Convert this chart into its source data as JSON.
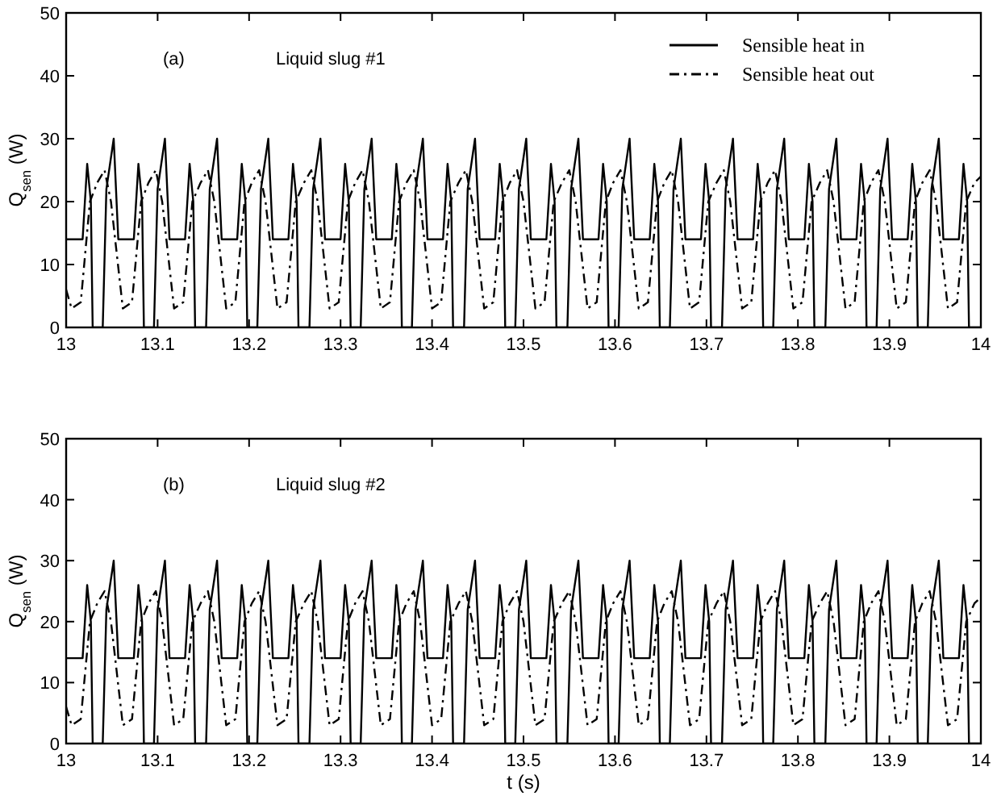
{
  "chart_data": [
    {
      "type": "line",
      "ylabel": "Q$_{sen}$ (W)",
      "annotations": [
        "(a)",
        "Liquid slug #1"
      ],
      "xlim": [
        13,
        14
      ],
      "ylim": [
        0,
        50
      ],
      "xticks": [
        13,
        13.1,
        13.2,
        13.3,
        13.4,
        13.5,
        13.6,
        13.7,
        13.8,
        13.9,
        14
      ],
      "yticks": [
        0,
        10,
        20,
        30,
        40,
        50
      ],
      "grid": false,
      "legend": "top right",
      "series": [
        {
          "name": "Sensible heat in",
          "color": "#000000",
          "line_style": "solid",
          "x": [
            13.0,
            13.018,
            13.023,
            13.027,
            13.029,
            13.04,
            13.044,
            13.052,
            13.057,
            13.074,
            13.079,
            13.083,
            13.085,
            13.096,
            13.1,
            13.108,
            13.113,
            13.13,
            13.135,
            13.139,
            13.141,
            13.153,
            13.157,
            13.165,
            13.17,
            13.187,
            13.192,
            13.196,
            13.198,
            13.209,
            13.213,
            13.221,
            13.226,
            13.243,
            13.248,
            13.252,
            13.254,
            13.266,
            13.27,
            13.278,
            13.283,
            13.3,
            13.305,
            13.309,
            13.311,
            13.322,
            13.326,
            13.334,
            13.339,
            13.356,
            13.361,
            13.365,
            13.367,
            13.378,
            13.382,
            13.39,
            13.395,
            13.412,
            13.417,
            13.421,
            13.423,
            13.435,
            13.439,
            13.447,
            13.452,
            13.469,
            13.474,
            13.478,
            13.48,
            13.491,
            13.495,
            13.503,
            13.508,
            13.525,
            13.53,
            13.534,
            13.536,
            13.548,
            13.552,
            13.56,
            13.565,
            13.582,
            13.587,
            13.591,
            13.593,
            13.604,
            13.608,
            13.616,
            13.621,
            13.638,
            13.643,
            13.647,
            13.649,
            13.66,
            13.664,
            13.672,
            13.677,
            13.694,
            13.699,
            13.703,
            13.705,
            13.717,
            13.721,
            13.729,
            13.734,
            13.751,
            13.756,
            13.76,
            13.762,
            13.773,
            13.777,
            13.785,
            13.79,
            13.807,
            13.812,
            13.816,
            13.818,
            13.83,
            13.834,
            13.842,
            13.847,
            13.864,
            13.869,
            13.873,
            13.875,
            13.886,
            13.89,
            13.898,
            13.903,
            13.92,
            13.925,
            13.929,
            13.931,
            13.942,
            13.946,
            13.954,
            13.959,
            13.976,
            13.981,
            13.985,
            13.987,
            14.0
          ],
          "values": [
            14,
            14,
            26,
            20,
            0,
            0,
            22,
            30,
            14,
            14,
            26,
            20,
            0,
            0,
            22,
            30,
            14,
            14,
            26,
            20,
            0,
            0,
            22,
            30,
            14,
            14,
            26,
            20,
            0,
            0,
            22,
            30,
            14,
            14,
            26,
            20,
            0,
            0,
            22,
            30,
            14,
            14,
            26,
            20,
            0,
            0,
            22,
            30,
            14,
            14,
            26,
            20,
            0,
            0,
            22,
            30,
            14,
            14,
            26,
            20,
            0,
            0,
            22,
            30,
            14,
            14,
            26,
            20,
            0,
            0,
            22,
            30,
            14,
            14,
            26,
            20,
            0,
            0,
            22,
            30,
            14,
            14,
            26,
            20,
            0,
            0,
            22,
            30,
            14,
            14,
            26,
            20,
            0,
            0,
            22,
            30,
            14,
            14,
            26,
            20,
            0,
            0,
            22,
            30,
            14,
            14,
            26,
            20,
            0,
            0,
            22,
            30,
            14,
            14,
            26,
            20,
            0,
            0,
            22,
            30,
            14,
            14,
            26,
            20,
            0,
            0,
            22,
            30,
            14,
            14,
            26,
            20,
            0,
            0,
            22,
            30,
            14,
            14,
            26,
            20,
            0,
            0
          ]
        },
        {
          "name": "Sensible heat out",
          "color": "#000000",
          "line_style": "dashed",
          "x": [
            13.0,
            13.006,
            13.016,
            13.026,
            13.034,
            13.042,
            13.049,
            13.062,
            13.072,
            13.082,
            13.09,
            13.098,
            13.105,
            13.118,
            13.128,
            13.138,
            13.147,
            13.155,
            13.162,
            13.175,
            13.185,
            13.195,
            13.203,
            13.211,
            13.218,
            13.231,
            13.241,
            13.251,
            13.26,
            13.268,
            13.275,
            13.288,
            13.298,
            13.308,
            13.316,
            13.324,
            13.331,
            13.344,
            13.354,
            13.364,
            13.372,
            13.38,
            13.387,
            13.4,
            13.41,
            13.42,
            13.429,
            13.437,
            13.444,
            13.457,
            13.467,
            13.477,
            13.485,
            13.493,
            13.5,
            13.513,
            13.523,
            13.533,
            13.542,
            13.55,
            13.557,
            13.57,
            13.58,
            13.59,
            13.598,
            13.606,
            13.613,
            13.626,
            13.636,
            13.646,
            13.654,
            13.662,
            13.669,
            13.682,
            13.692,
            13.702,
            13.711,
            13.719,
            13.726,
            13.739,
            13.749,
            13.759,
            13.767,
            13.775,
            13.782,
            13.795,
            13.805,
            13.815,
            13.824,
            13.832,
            13.839,
            13.852,
            13.862,
            13.872,
            13.88,
            13.888,
            13.895,
            13.908,
            13.918,
            13.928,
            13.936,
            13.944,
            13.951,
            13.964,
            13.974,
            13.984,
            13.993,
            14.0
          ],
          "values": [
            6,
            3,
            4,
            20,
            23,
            25,
            20,
            3,
            4,
            20,
            23,
            25,
            20,
            3,
            4,
            20,
            23,
            25,
            20,
            3,
            4,
            20,
            23,
            25,
            20,
            3,
            4,
            20,
            23,
            25,
            20,
            3,
            4,
            20,
            23,
            25,
            20,
            3,
            4,
            20,
            23,
            25,
            20,
            3,
            4,
            20,
            23,
            25,
            20,
            3,
            4,
            20,
            23,
            25,
            20,
            3,
            4,
            20,
            23,
            25,
            20,
            3,
            4,
            20,
            23,
            25,
            20,
            3,
            4,
            20,
            23,
            25,
            20,
            3,
            4,
            20,
            23,
            25,
            20,
            3,
            4,
            20,
            23,
            25,
            20,
            3,
            4,
            20,
            23,
            25,
            20,
            3,
            4,
            20,
            23,
            25,
            20,
            3,
            4,
            20,
            23,
            25,
            20,
            3,
            4,
            20,
            23,
            24
          ]
        }
      ]
    },
    {
      "type": "line",
      "xlabel": "t (s)",
      "ylabel": "Q$_{sen}$ (W)",
      "annotations": [
        "(b)",
        "Liquid slug #2"
      ],
      "xlim": [
        13,
        14
      ],
      "ylim": [
        0,
        50
      ],
      "xticks": [
        13,
        13.1,
        13.2,
        13.3,
        13.4,
        13.5,
        13.6,
        13.7,
        13.8,
        13.9,
        14
      ],
      "yticks": [
        0,
        10,
        20,
        30,
        40,
        50
      ],
      "grid": false,
      "series": [
        {
          "color": "#000000",
          "line_style": "solid",
          "x": [
            13.0,
            13.018,
            13.023,
            13.027,
            13.029,
            13.04,
            13.044,
            13.052,
            13.057,
            13.074,
            13.079,
            13.083,
            13.085,
            13.096,
            13.1,
            13.108,
            13.113,
            13.13,
            13.135,
            13.139,
            13.141,
            13.153,
            13.157,
            13.165,
            13.17,
            13.187,
            13.192,
            13.196,
            13.198,
            13.209,
            13.213,
            13.221,
            13.226,
            13.243,
            13.248,
            13.252,
            13.254,
            13.266,
            13.27,
            13.278,
            13.283,
            13.3,
            13.305,
            13.309,
            13.311,
            13.322,
            13.326,
            13.334,
            13.339,
            13.356,
            13.361,
            13.365,
            13.367,
            13.378,
            13.382,
            13.39,
            13.395,
            13.412,
            13.417,
            13.421,
            13.423,
            13.435,
            13.439,
            13.447,
            13.452,
            13.469,
            13.474,
            13.478,
            13.48,
            13.491,
            13.495,
            13.503,
            13.508,
            13.525,
            13.53,
            13.534,
            13.536,
            13.548,
            13.552,
            13.56,
            13.565,
            13.582,
            13.587,
            13.591,
            13.593,
            13.604,
            13.608,
            13.616,
            13.621,
            13.638,
            13.643,
            13.647,
            13.649,
            13.66,
            13.664,
            13.672,
            13.677,
            13.694,
            13.699,
            13.703,
            13.705,
            13.717,
            13.721,
            13.729,
            13.734,
            13.751,
            13.756,
            13.76,
            13.762,
            13.773,
            13.777,
            13.785,
            13.79,
            13.807,
            13.812,
            13.816,
            13.818,
            13.83,
            13.834,
            13.842,
            13.847,
            13.864,
            13.869,
            13.873,
            13.875,
            13.886,
            13.89,
            13.898,
            13.903,
            13.92,
            13.925,
            13.929,
            13.931,
            13.942,
            13.946,
            13.954,
            13.959,
            13.976,
            13.981,
            13.985,
            13.987,
            14.0
          ],
          "values": [
            14,
            14,
            26,
            20,
            0,
            0,
            22,
            30,
            14,
            14,
            26,
            20,
            0,
            0,
            22,
            30,
            14,
            14,
            26,
            20,
            0,
            0,
            22,
            30,
            14,
            14,
            26,
            20,
            0,
            0,
            22,
            30,
            14,
            14,
            26,
            20,
            0,
            0,
            22,
            30,
            14,
            14,
            26,
            20,
            0,
            0,
            22,
            30,
            14,
            14,
            26,
            20,
            0,
            0,
            22,
            30,
            14,
            14,
            26,
            20,
            0,
            0,
            22,
            30,
            14,
            14,
            26,
            20,
            0,
            0,
            22,
            30,
            14,
            14,
            26,
            20,
            0,
            0,
            22,
            30,
            14,
            14,
            26,
            20,
            0,
            0,
            22,
            30,
            14,
            14,
            26,
            20,
            0,
            0,
            22,
            30,
            14,
            14,
            26,
            20,
            0,
            0,
            22,
            30,
            14,
            14,
            26,
            20,
            0,
            0,
            22,
            30,
            14,
            14,
            26,
            20,
            0,
            0,
            22,
            30,
            14,
            14,
            26,
            20,
            0,
            0,
            22,
            30,
            14,
            14,
            26,
            20,
            0,
            0,
            22,
            30,
            14,
            14,
            26,
            20,
            0,
            0
          ]
        },
        {
          "color": "#000000",
          "line_style": "dashed",
          "x": [
            13.0,
            13.006,
            13.016,
            13.026,
            13.034,
            13.042,
            13.049,
            13.062,
            13.072,
            13.082,
            13.09,
            13.098,
            13.105,
            13.118,
            13.128,
            13.138,
            13.147,
            13.155,
            13.162,
            13.175,
            13.185,
            13.195,
            13.203,
            13.211,
            13.218,
            13.231,
            13.241,
            13.251,
            13.26,
            13.268,
            13.275,
            13.288,
            13.298,
            13.308,
            13.316,
            13.324,
            13.331,
            13.344,
            13.354,
            13.364,
            13.372,
            13.38,
            13.387,
            13.4,
            13.41,
            13.42,
            13.429,
            13.437,
            13.444,
            13.457,
            13.467,
            13.477,
            13.485,
            13.493,
            13.5,
            13.513,
            13.523,
            13.533,
            13.542,
            13.55,
            13.557,
            13.57,
            13.58,
            13.59,
            13.598,
            13.606,
            13.613,
            13.626,
            13.636,
            13.646,
            13.654,
            13.662,
            13.669,
            13.682,
            13.692,
            13.702,
            13.711,
            13.719,
            13.726,
            13.739,
            13.749,
            13.759,
            13.767,
            13.775,
            13.782,
            13.795,
            13.805,
            13.815,
            13.824,
            13.832,
            13.839,
            13.852,
            13.862,
            13.872,
            13.88,
            13.888,
            13.895,
            13.908,
            13.918,
            13.928,
            13.936,
            13.944,
            13.951,
            13.964,
            13.974,
            13.984,
            13.993,
            14.0
          ],
          "values": [
            6,
            3,
            4,
            20,
            23,
            25,
            20,
            3,
            4,
            20,
            23,
            25,
            20,
            3,
            4,
            20,
            23,
            25,
            20,
            3,
            4,
            20,
            23,
            25,
            20,
            3,
            4,
            20,
            23,
            25,
            20,
            3,
            4,
            20,
            23,
            25,
            20,
            3,
            4,
            20,
            23,
            25,
            20,
            3,
            4,
            20,
            23,
            25,
            20,
            3,
            4,
            20,
            23,
            25,
            20,
            3,
            4,
            20,
            23,
            25,
            20,
            3,
            4,
            20,
            23,
            25,
            20,
            3,
            4,
            20,
            23,
            25,
            20,
            3,
            4,
            20,
            23,
            25,
            20,
            3,
            4,
            20,
            23,
            25,
            20,
            3,
            4,
            20,
            23,
            25,
            20,
            3,
            4,
            20,
            23,
            25,
            20,
            3,
            4,
            20,
            23,
            25,
            20,
            3,
            4,
            20,
            23,
            24
          ]
        }
      ]
    }
  ]
}
